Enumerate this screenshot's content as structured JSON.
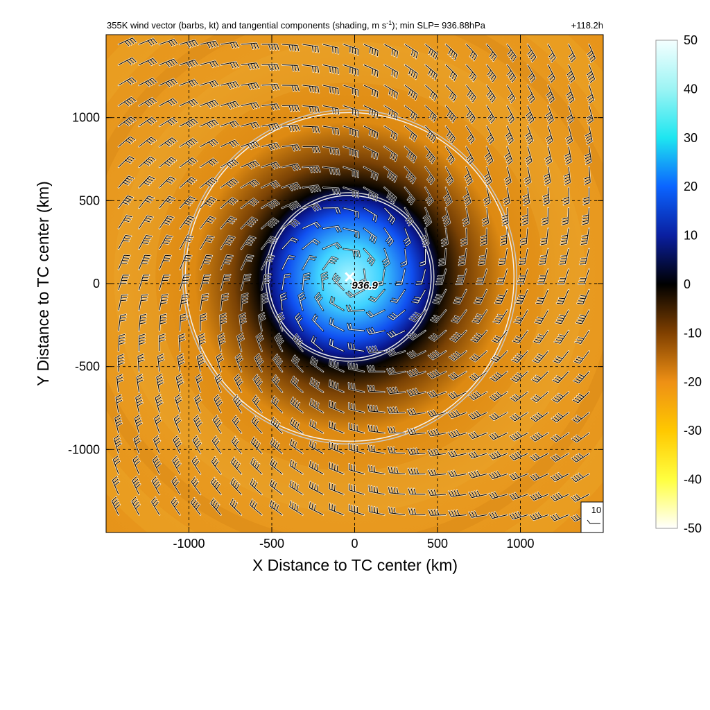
{
  "chart_data": {
    "type": "heatmap",
    "title_main": "355K wind vector (barbs, kt) and tangential components (shading, m s",
    "title_sup": "-1",
    "title_rest": "); min SLP= 936.88hPa",
    "time_label": "+118.2h",
    "xlabel": "X Distance to TC center (km)",
    "ylabel": "Y Distance to TC center (km)",
    "xlim": [
      -1500,
      1500
    ],
    "ylim": [
      -1500,
      1500
    ],
    "xticks": [
      -1000,
      -500,
      0,
      500,
      1000
    ],
    "yticks": [
      -1000,
      -500,
      0,
      500,
      1000
    ],
    "xtick_labels": [
      "-1000",
      "-500",
      "0",
      "500",
      "1000"
    ],
    "ytick_labels": [
      "-1000",
      "-500",
      "0",
      "500",
      "1000"
    ],
    "grid": true,
    "center": {
      "x": -30,
      "y": 40,
      "label": "936.9"
    },
    "rings_km": [
      500,
      1000
    ],
    "reference_barb": {
      "label": "10"
    },
    "colorbar": {
      "min": -50,
      "max": 50,
      "ticks": [
        50,
        40,
        30,
        20,
        10,
        0,
        -10,
        -20,
        -30,
        -40,
        -50
      ],
      "tick_labels": [
        "50",
        "40",
        "30",
        "20",
        "10",
        "0",
        "-10",
        "-20",
        "-30",
        "-40",
        "-50"
      ],
      "stops": [
        {
          "v": 50,
          "color": "#f4ffff"
        },
        {
          "v": 40,
          "color": "#9cf4f4"
        },
        {
          "v": 30,
          "color": "#1ee6f0"
        },
        {
          "v": 20,
          "color": "#0b64ff"
        },
        {
          "v": 10,
          "color": "#0a1fa0"
        },
        {
          "v": 0,
          "color": "#000000"
        },
        {
          "v": -10,
          "color": "#804000"
        },
        {
          "v": -20,
          "color": "#ee9015"
        },
        {
          "v": -30,
          "color": "#ffc800"
        },
        {
          "v": -40,
          "color": "#ffff40"
        },
        {
          "v": -50,
          "color": "#ffffff"
        }
      ]
    },
    "field_colors": {
      "inner_bright": "#a8f4ff",
      "inner_cyan": "#3fd2ff",
      "inner_blue": "#1050f0",
      "inner_dark": "#0a1890",
      "boundary": "#050300",
      "dark_orange": "#7a4205",
      "orange": "#de8a12",
      "orange_light": "#e89a20",
      "orange_outer": "#e69218"
    }
  }
}
